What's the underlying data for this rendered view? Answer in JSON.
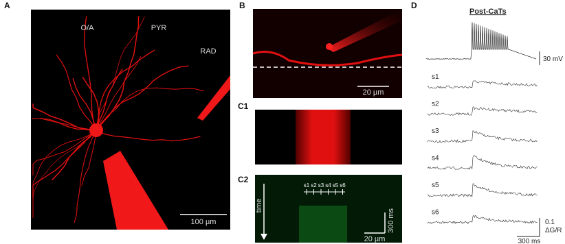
{
  "panels": {
    "a": {
      "label": "A",
      "regions": [
        "O/A",
        "PYR",
        "RAD"
      ],
      "scale": "100 µm"
    },
    "b": {
      "label": "B",
      "scale": "20 µm"
    },
    "c1": {
      "label": "C1"
    },
    "c2": {
      "label": "C2",
      "axis": "time",
      "sites": [
        "s1",
        "s2",
        "s3",
        "s4",
        "s5",
        "s6"
      ],
      "time_scale": "300 ms",
      "space_scale": "20 µm"
    },
    "d": {
      "label": "D",
      "title": "Post-CaTs",
      "voltage_scale": "30 mV",
      "traces": [
        "s1",
        "s2",
        "s3",
        "s4",
        "s5",
        "s6"
      ],
      "amp_scale": "0.1",
      "amp_unit": "ΔG/R",
      "time_scale": "300 ms"
    }
  }
}
